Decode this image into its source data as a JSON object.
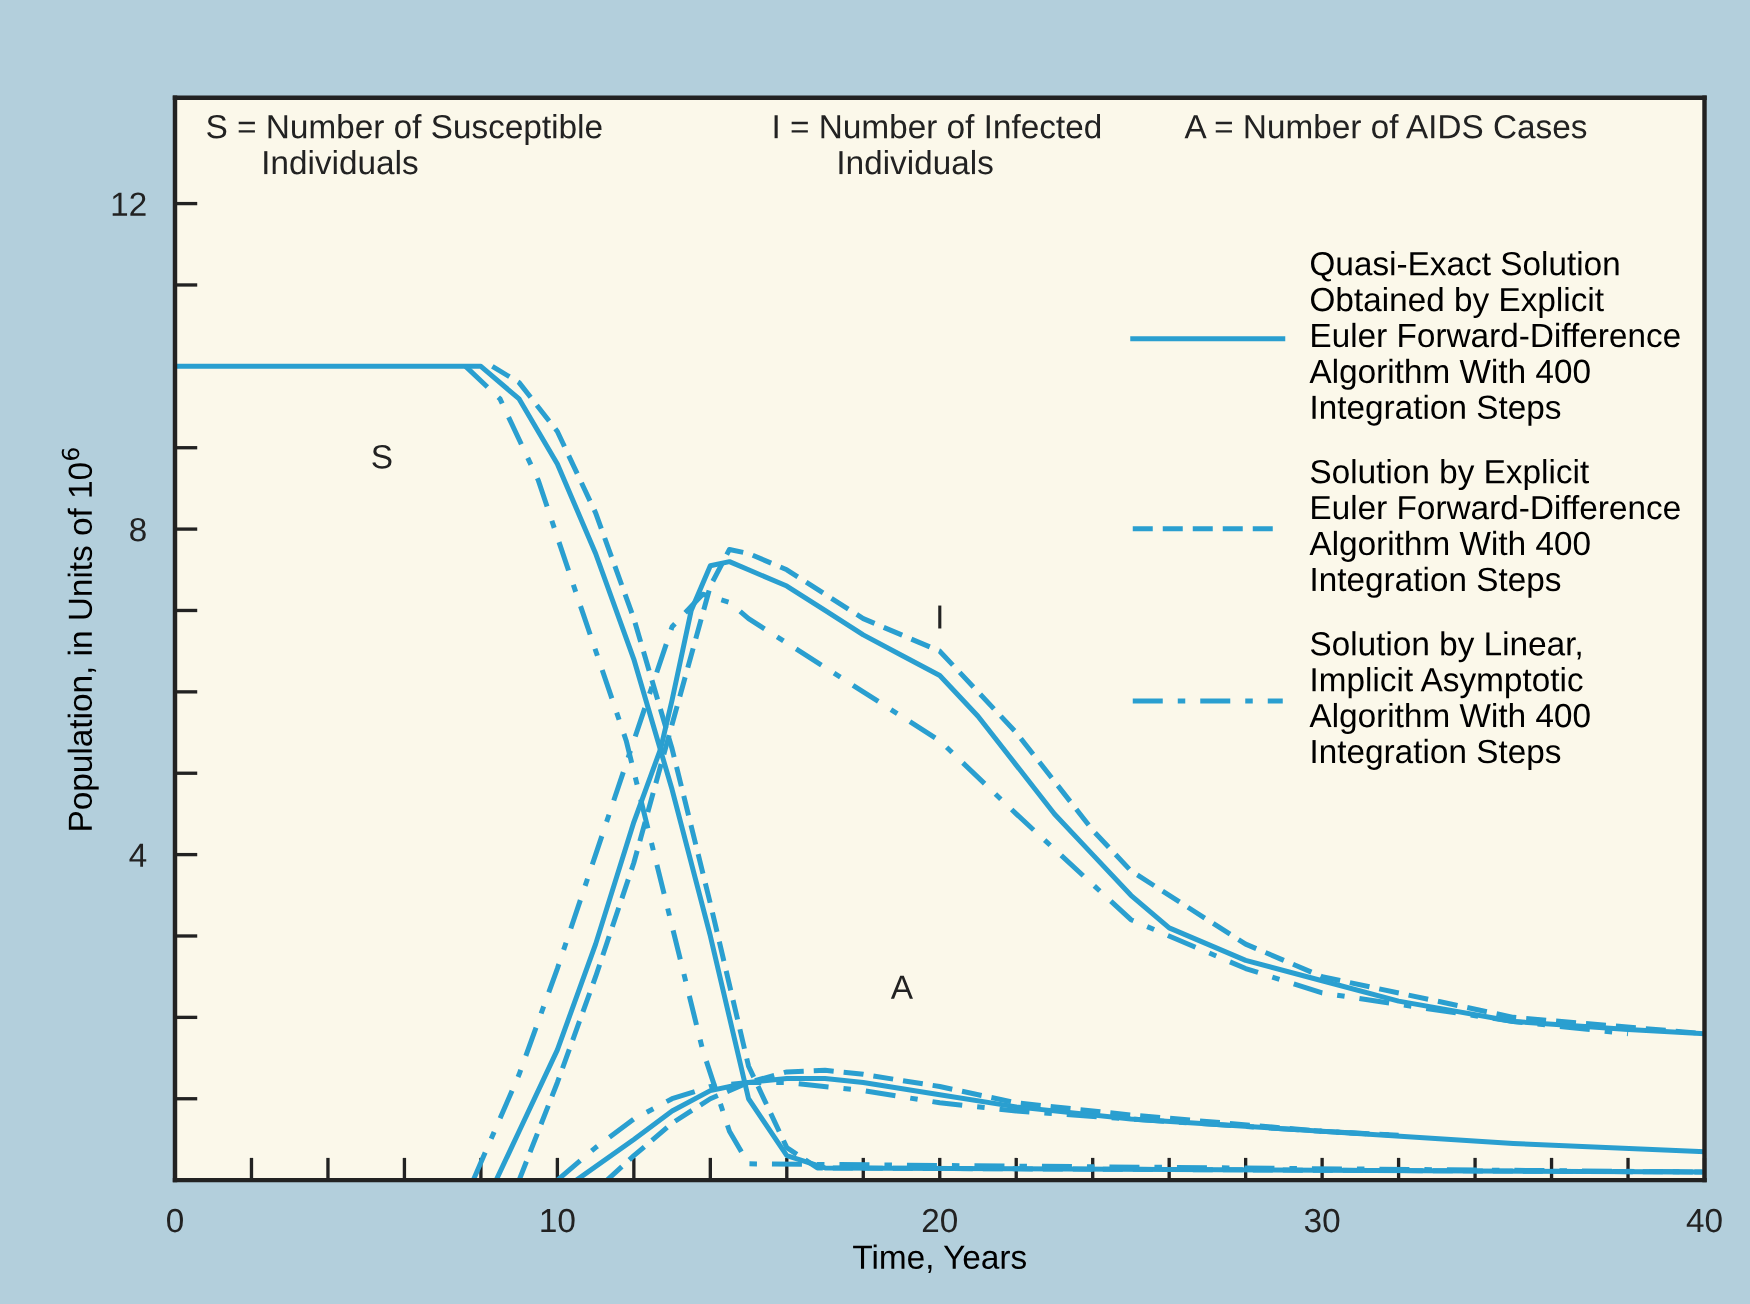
{
  "chart_data": {
    "type": "line",
    "xlabel": "Time, Years",
    "ylabel": "Population, in Units of 10$^{6}$",
    "xlim": [
      0,
      40
    ],
    "ylim": [
      0,
      13.3
    ],
    "xticks": [
      0,
      {
        "value": 2,
        "label": null
      },
      {
        "value": 4,
        "label": null
      },
      {
        "value": 6,
        "label": null
      },
      {
        "value": 8,
        "label": null
      },
      10,
      {
        "value": 12,
        "label": null
      },
      {
        "value": 14,
        "label": null
      },
      {
        "value": 16,
        "label": null
      },
      {
        "value": 18,
        "label": null
      },
      20,
      {
        "value": 22,
        "label": null
      },
      {
        "value": 24,
        "label": null
      },
      {
        "value": 26,
        "label": null
      },
      {
        "value": 28,
        "label": null
      },
      30,
      {
        "value": 32,
        "label": null
      },
      {
        "value": 34,
        "label": null
      },
      {
        "value": 36,
        "label": null
      },
      {
        "value": 38,
        "label": null
      },
      40
    ],
    "yticks": [
      {
        "value": 1,
        "label": null
      },
      {
        "value": 2,
        "label": null
      },
      {
        "value": 3,
        "label": null
      },
      4,
      {
        "value": 5,
        "label": null
      },
      {
        "value": 6,
        "label": null
      },
      {
        "value": 7,
        "label": null
      },
      8,
      {
        "value": 9,
        "label": null
      },
      {
        "value": 10,
        "label": null
      },
      {
        "value": 11,
        "label": null
      },
      12
    ],
    "grid": false,
    "legend": "top right",
    "marker": "none",
    "annotations": [
      "S = Number of Susceptible\n      Individuals",
      "I = Number of Infected\n       Individuals",
      "A = Number of AIDS Cases",
      "S",
      "I",
      "A"
    ],
    "series": [
      {
        "name": "Quasi-Exact Solution\nObtained by Explicit\nEuler Forward-Difference\nAlgorithm With 400\nIntegration Steps",
        "color": "#2a9fd0",
        "line_style": "solid",
        "x": [
          0,
          8,
          9,
          10,
          11,
          12,
          13,
          14,
          15,
          16,
          17,
          40
        ],
        "values": [
          10,
          10,
          9.6,
          8.8,
          7.7,
          6.4,
          4.8,
          3.0,
          1.0,
          0.3,
          0.15,
          0.1
        ]
      },
      {
        "name": "Solution by Explicit\nEuler Forward-Difference\nAlgorithm With 400\nIntegration Steps",
        "color": "#2a9fd0",
        "line_style": "dashed",
        "x": [
          8.3,
          9,
          10,
          11,
          12,
          13,
          14,
          15,
          16,
          16.8,
          40
        ],
        "values": [
          10,
          9.8,
          9.2,
          8.2,
          6.9,
          5.3,
          3.4,
          1.4,
          0.4,
          0.15,
          0.1
        ]
      },
      {
        "name": "Solution by Linear,\nImplicit Asymptotic\nAlgorithm With 400\nIntegration Steps",
        "color": "#2a9fd0",
        "line_style": "dashdot",
        "x": [
          7.6,
          8.5,
          9.5,
          10.5,
          11.8,
          12.8,
          13.8,
          14.5,
          15,
          40
        ],
        "values": [
          10,
          9.6,
          8.6,
          7.2,
          5.4,
          3.5,
          1.6,
          0.6,
          0.2,
          0.1
        ]
      },
      {
        "color": "#2a9fd0",
        "line_style": "solid",
        "x": [
          8.4,
          9,
          10,
          11,
          12,
          12.7,
          13,
          13.5,
          14,
          14.5,
          15,
          16,
          17,
          18,
          19,
          20,
          21,
          22,
          23,
          24,
          25,
          26,
          28,
          30,
          32,
          35,
          38,
          40
        ],
        "values": [
          0,
          0.6,
          1.6,
          2.9,
          4.4,
          5.3,
          5.9,
          7.0,
          7.55,
          7.6,
          7.5,
          7.3,
          7.0,
          6.7,
          6.45,
          6.2,
          5.7,
          5.1,
          4.5,
          4.0,
          3.5,
          3.1,
          2.7,
          2.45,
          2.2,
          1.95,
          1.85,
          1.8
        ]
      },
      {
        "color": "#2a9fd0",
        "line_style": "dashed",
        "x": [
          9,
          10,
          11,
          12,
          13,
          14,
          14.5,
          15,
          16,
          17,
          18,
          20,
          22,
          24,
          25,
          28,
          30,
          35,
          40
        ],
        "values": [
          0,
          1.2,
          2.5,
          3.9,
          5.6,
          7.3,
          7.75,
          7.7,
          7.5,
          7.2,
          6.9,
          6.5,
          5.5,
          4.3,
          3.8,
          2.9,
          2.5,
          2.0,
          1.8
        ]
      },
      {
        "color": "#2a9fd0",
        "line_style": "dashdot",
        "x": [
          7.8,
          9,
          10,
          11,
          12,
          13,
          13.8,
          14.5,
          15,
          16,
          17,
          18,
          20,
          22,
          25,
          28,
          30,
          35,
          38
        ],
        "values": [
          0,
          1.3,
          2.6,
          4.0,
          5.4,
          6.8,
          7.2,
          7.1,
          6.9,
          6.6,
          6.3,
          6.0,
          5.4,
          4.5,
          3.2,
          2.6,
          2.3,
          1.95,
          1.8
        ]
      },
      {
        "color": "#2a9fd0",
        "line_style": "solid",
        "x": [
          10.5,
          12,
          13,
          14,
          15,
          16,
          17,
          18,
          20,
          22,
          25,
          30,
          35,
          40
        ],
        "values": [
          0,
          0.5,
          0.85,
          1.1,
          1.2,
          1.25,
          1.25,
          1.2,
          1.05,
          0.9,
          0.75,
          0.6,
          0.45,
          0.35
        ]
      },
      {
        "color": "#2a9fd0",
        "line_style": "dashed",
        "x": [
          11.3,
          12,
          13,
          14,
          15,
          16,
          17,
          18,
          20,
          22,
          25,
          30,
          32
        ],
        "values": [
          0,
          0.3,
          0.7,
          1.0,
          1.2,
          1.33,
          1.35,
          1.3,
          1.15,
          0.95,
          0.8,
          0.6,
          0.55
        ]
      },
      {
        "color": "#2a9fd0",
        "line_style": "dashdot",
        "x": [
          10,
          11,
          12,
          13,
          14,
          15,
          16,
          18,
          20,
          22,
          25,
          30,
          32
        ],
        "values": [
          0,
          0.4,
          0.75,
          1.0,
          1.15,
          1.2,
          1.2,
          1.1,
          0.95,
          0.85,
          0.75,
          0.6,
          0.55
        ]
      }
    ]
  }
}
